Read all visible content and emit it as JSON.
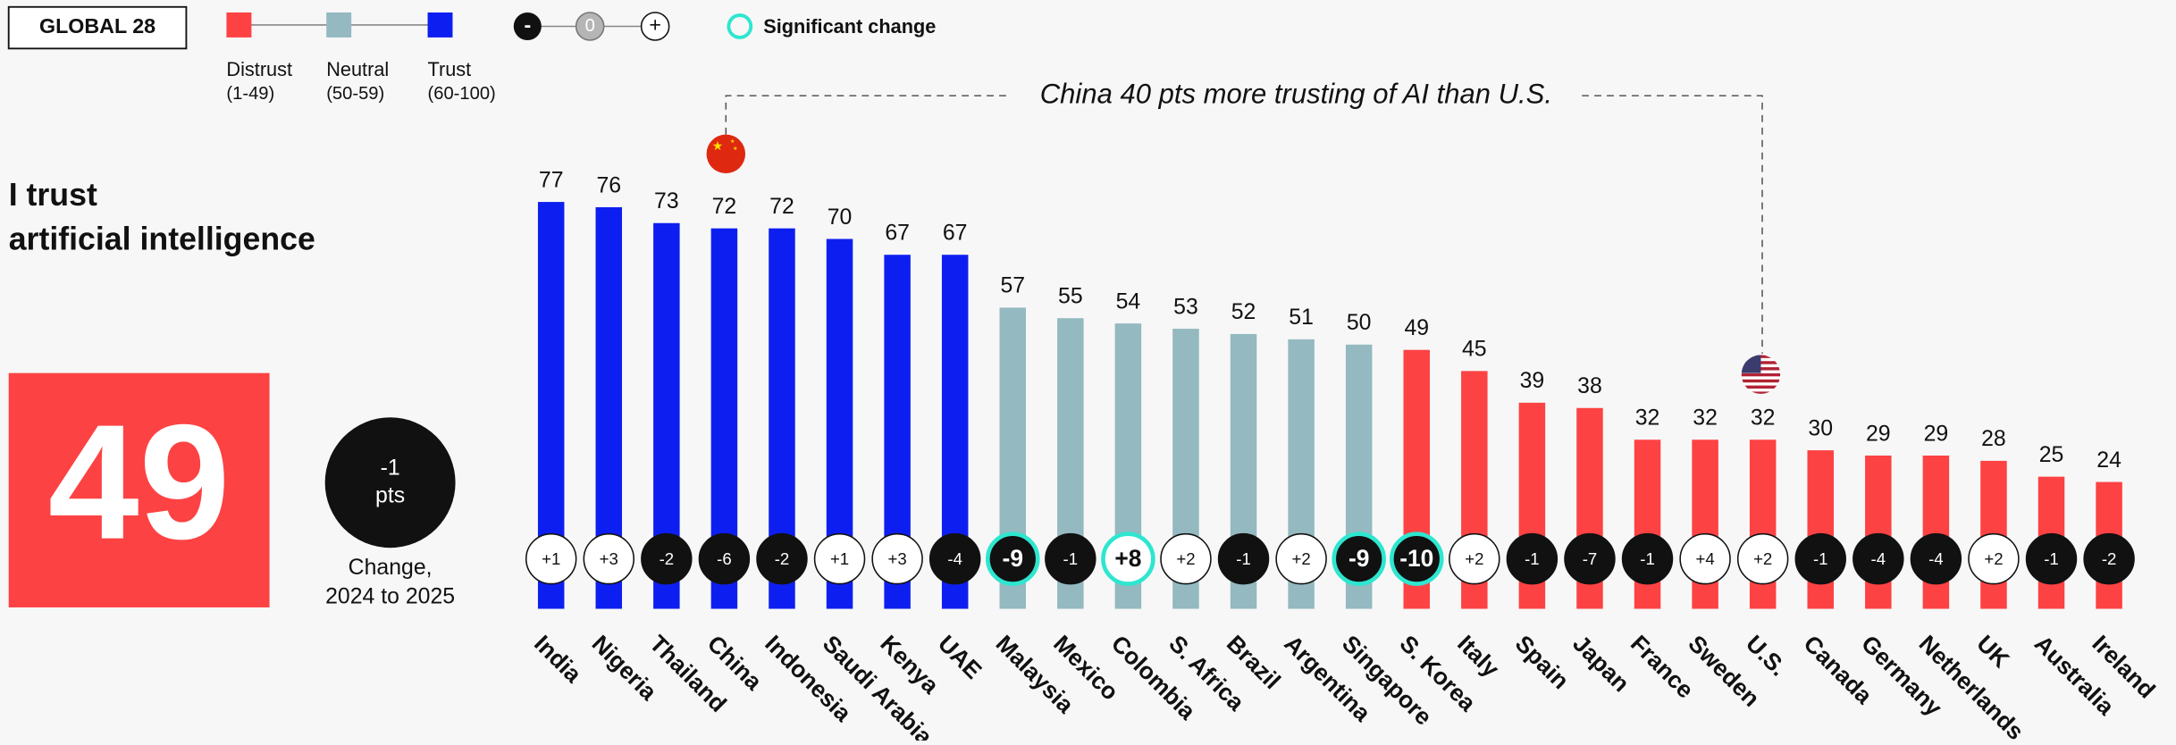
{
  "chart_data": {
    "type": "bar",
    "badge": "GLOBAL 28",
    "title_lines": [
      "I trust",
      "artificial intelligence"
    ],
    "overall": {
      "value": 49,
      "change": -1,
      "change_label": "-1",
      "unit": "pts",
      "caption_lines": [
        "Change,",
        "2024 to 2025"
      ]
    },
    "bands": [
      {
        "name": "Distrust",
        "label": "(1-49)",
        "color": "#fd4243",
        "min": 1,
        "max": 49
      },
      {
        "name": "Neutral",
        "label": "(50-59)",
        "color": "#94b9c0",
        "min": 50,
        "max": 59
      },
      {
        "name": "Trust",
        "label": "(60-100)",
        "color": "#0d1ff0",
        "min": 60,
        "max": 100
      }
    ],
    "change_scale": [
      "-",
      "0",
      "+"
    ],
    "significant_label": "Significant change",
    "annotation": "China 40 pts more trusting of AI than U.S.",
    "categories": [
      "India",
      "Nigeria",
      "Thailand",
      "China",
      "Indonesia",
      "Saudi Arabia",
      "Kenya",
      "UAE",
      "Malaysia",
      "Mexico",
      "Colombia",
      "S. Africa",
      "Brazil",
      "Argentina",
      "Singapore",
      "S. Korea",
      "Italy",
      "Spain",
      "Japan",
      "France",
      "Sweden",
      "U.S.",
      "Canada",
      "Germany",
      "Netherlands",
      "UK",
      "Australia",
      "Ireland"
    ],
    "values": [
      77,
      76,
      73,
      72,
      72,
      70,
      67,
      67,
      57,
      55,
      54,
      53,
      52,
      51,
      50,
      49,
      45,
      39,
      38,
      32,
      32,
      32,
      30,
      29,
      29,
      28,
      25,
      24
    ],
    "changes": [
      1,
      3,
      -2,
      -6,
      -2,
      1,
      3,
      -4,
      -9,
      -1,
      8,
      2,
      -1,
      2,
      -9,
      -10,
      2,
      -1,
      -7,
      -1,
      4,
      2,
      -1,
      -4,
      -4,
      2,
      -1,
      -2
    ],
    "change_labels": [
      "+1",
      "+3",
      "-2",
      "-6",
      "-2",
      "+1",
      "+3",
      "-4",
      "-9",
      "-1",
      "+8",
      "+2",
      "-1",
      "+2",
      "-9",
      "-10",
      "+2",
      "-1",
      "-7",
      "-1",
      "+4",
      "+2",
      "-1",
      "-4",
      "-4",
      "+2",
      "-1",
      "-2"
    ],
    "significant": [
      false,
      false,
      false,
      false,
      false,
      false,
      false,
      false,
      true,
      false,
      true,
      false,
      false,
      false,
      true,
      true,
      false,
      false,
      false,
      false,
      false,
      false,
      false,
      false,
      false,
      false,
      false,
      false
    ],
    "ylim": [
      0,
      100
    ]
  }
}
